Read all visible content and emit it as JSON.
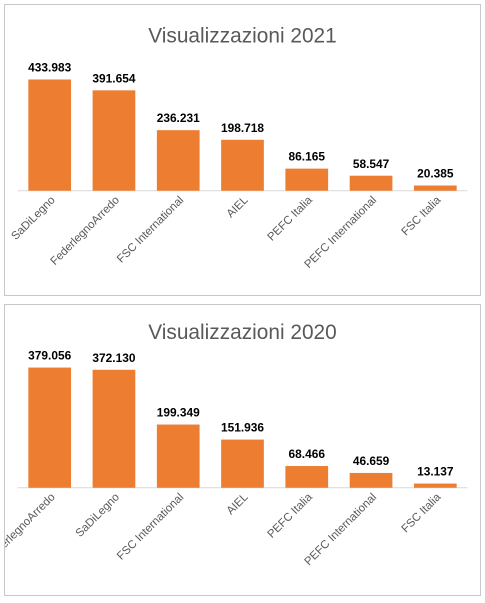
{
  "colors": {
    "bar": "#ed7d31",
    "axis": "#d9d9d9"
  },
  "chart_data": [
    {
      "type": "bar",
      "title": "Visualizzazioni 2021",
      "categories": [
        "SaDiLegno",
        "FederlegnoArredo",
        "FSC International",
        "AIEL",
        "PEFC Italia",
        "PEFC International",
        "FSC Italia"
      ],
      "values": [
        433983,
        391654,
        236231,
        198718,
        86165,
        58547,
        20385
      ],
      "value_labels": [
        "433.983",
        "391.654",
        "236.231",
        "198.718",
        "86.165",
        "58.547",
        "20.385"
      ],
      "grid": false,
      "legend": "none"
    },
    {
      "type": "bar",
      "title": "Visualizzazioni 2020",
      "categories": [
        "FederlegnoArredo",
        "SaDiLegno",
        "FSC International",
        "AIEL",
        "PEFC Italia",
        "PEFC International",
        "FSC Italia"
      ],
      "values": [
        379056,
        372130,
        199349,
        151936,
        68466,
        46659,
        13137
      ],
      "value_labels": [
        "379.056",
        "372.130",
        "199.349",
        "151.936",
        "68.466",
        "46.659",
        "13.137"
      ],
      "grid": false,
      "legend": "none"
    }
  ]
}
